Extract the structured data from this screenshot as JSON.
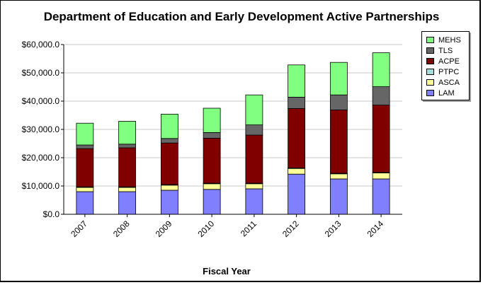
{
  "chart_data": {
    "type": "bar",
    "stacked": true,
    "title": "Department of Education and Early Development Active Partnerships",
    "xlabel": "Fiscal Year",
    "ylabel": "",
    "ylim": [
      0,
      60000
    ],
    "yticks": [
      "$0.0",
      "$10,000.0",
      "$20,000.0",
      "$30,000.0",
      "$40,000.0",
      "$50,000.0",
      "$60,000.0"
    ],
    "grid": true,
    "legend_position": "top-right",
    "categories": [
      "2007",
      "2008",
      "2009",
      "2010",
      "2011",
      "2012",
      "2013",
      "2014"
    ],
    "series": [
      {
        "name": "LAM",
        "color": "#8080ff",
        "values": [
          8000,
          8000,
          8500,
          8800,
          9000,
          14200,
          12500,
          12500
        ]
      },
      {
        "name": "ASCA",
        "color": "#ffff99",
        "values": [
          1500,
          1500,
          1800,
          2000,
          1800,
          2000,
          1800,
          2100
        ]
      },
      {
        "name": "PTPC",
        "color": "#a6dcdc",
        "values": [
          200,
          200,
          200,
          200,
          200,
          200,
          200,
          200
        ]
      },
      {
        "name": "ACPE",
        "color": "#800000",
        "values": [
          13500,
          13800,
          14700,
          15900,
          17000,
          21000,
          22400,
          23800
        ]
      },
      {
        "name": "TLS",
        "color": "#666666",
        "values": [
          1300,
          1300,
          1600,
          2000,
          3600,
          4000,
          5300,
          6500
        ]
      },
      {
        "name": "MEHS",
        "color": "#80ff80",
        "values": [
          7700,
          8100,
          8600,
          8600,
          10600,
          11400,
          11500,
          12000
        ]
      }
    ],
    "legend_order": [
      "MEHS",
      "TLS",
      "ACPE",
      "PTPC",
      "ASCA",
      "LAM"
    ]
  }
}
